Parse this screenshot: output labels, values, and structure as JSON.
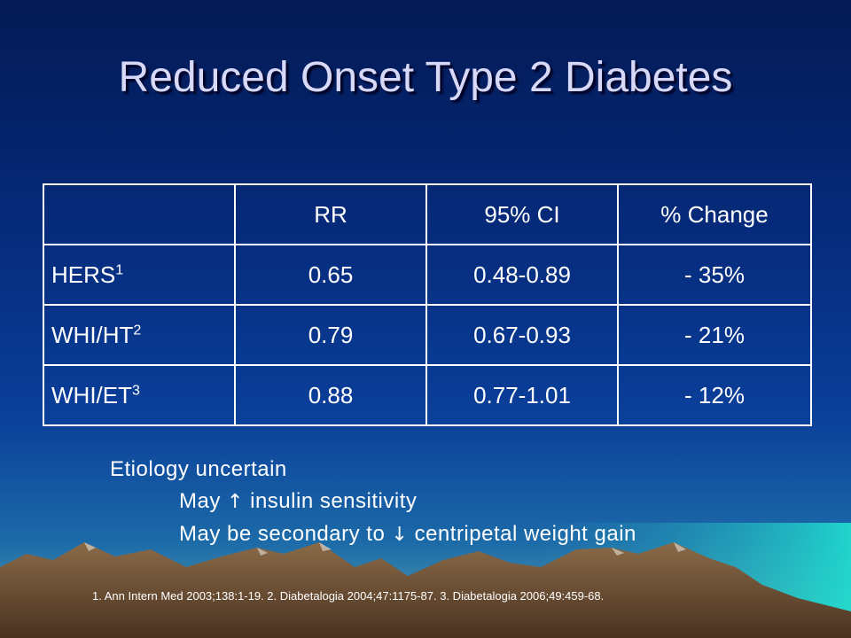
{
  "slide": {
    "title": "Reduced Onset Type 2 Diabetes"
  },
  "table": {
    "headers": [
      "",
      "RR",
      "95% CI",
      "% Change"
    ],
    "rows": [
      {
        "label": "HERS",
        "ref": "1",
        "rr": "0.65",
        "ci": "0.48-0.89",
        "change": "- 35%"
      },
      {
        "label": "WHI/HT",
        "ref": "2",
        "rr": "0.79",
        "ci": "0.67-0.93",
        "change": "- 21%"
      },
      {
        "label": "WHI/ET",
        "ref": "3",
        "rr": "0.88",
        "ci": "0.77-1.01",
        "change": "- 12%"
      }
    ]
  },
  "notes": {
    "line1": "Etiology uncertain",
    "line2_pre": "May",
    "line2_arrow": "↑",
    "line2_post": "insulin sensitivity",
    "line3_pre": "May be secondary to",
    "line3_arrow": "↓",
    "line3_post": "centripetal weight gain"
  },
  "references": "1. Ann Intern Med 2003;138:1-19. 2. Diabetalogia 2004;47:1175-87. 3. Diabetalogia 2006;49:459-68.",
  "colors": {
    "background_top": "#031a55",
    "background_bottom": "#5aaab0",
    "title": "#d8d8f8",
    "text": "#ffffff",
    "mountains": "#6b4a2e"
  }
}
